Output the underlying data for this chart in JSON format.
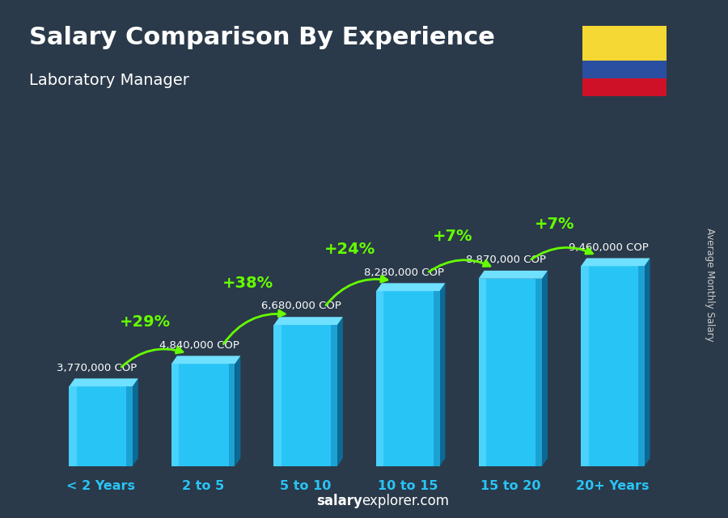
{
  "title": "Salary Comparison By Experience",
  "subtitle": "Laboratory Manager",
  "categories": [
    "< 2 Years",
    "2 to 5",
    "5 to 10",
    "10 to 15",
    "15 to 20",
    "20+ Years"
  ],
  "values": [
    3770000,
    4840000,
    6680000,
    8280000,
    8870000,
    9460000
  ],
  "salary_labels": [
    "3,770,000 COP",
    "4,840,000 COP",
    "6,680,000 COP",
    "8,280,000 COP",
    "8,870,000 COP",
    "9,460,000 COP"
  ],
  "pct_labels": [
    null,
    "+29%",
    "+38%",
    "+24%",
    "+7%",
    "+7%"
  ],
  "bar_color_main": "#29c4f6",
  "bar_color_light": "#55d8ff",
  "bar_color_dark": "#0a7aaa",
  "bar_color_side": "#0a6a95",
  "bar_color_top": "#70e0ff",
  "bg_color": "#3a4a5a",
  "overlay_color": "#1e2d3d",
  "overlay_alpha": 0.55,
  "title_color": "#ffffff",
  "subtitle_color": "#ffffff",
  "salary_label_color": "#ffffff",
  "pct_color": "#66ff00",
  "xlabel_color": "#29c4f6",
  "watermark_bold": "salary",
  "watermark_regular": "explorer.com",
  "side_label": "Average Monthly Salary",
  "bar_width": 0.62,
  "fig_width": 9.0,
  "fig_height": 6.41,
  "dpi": 100,
  "flag_yellow": "#F5D833",
  "flag_blue": "#2A4FA0",
  "flag_red": "#CE1126"
}
